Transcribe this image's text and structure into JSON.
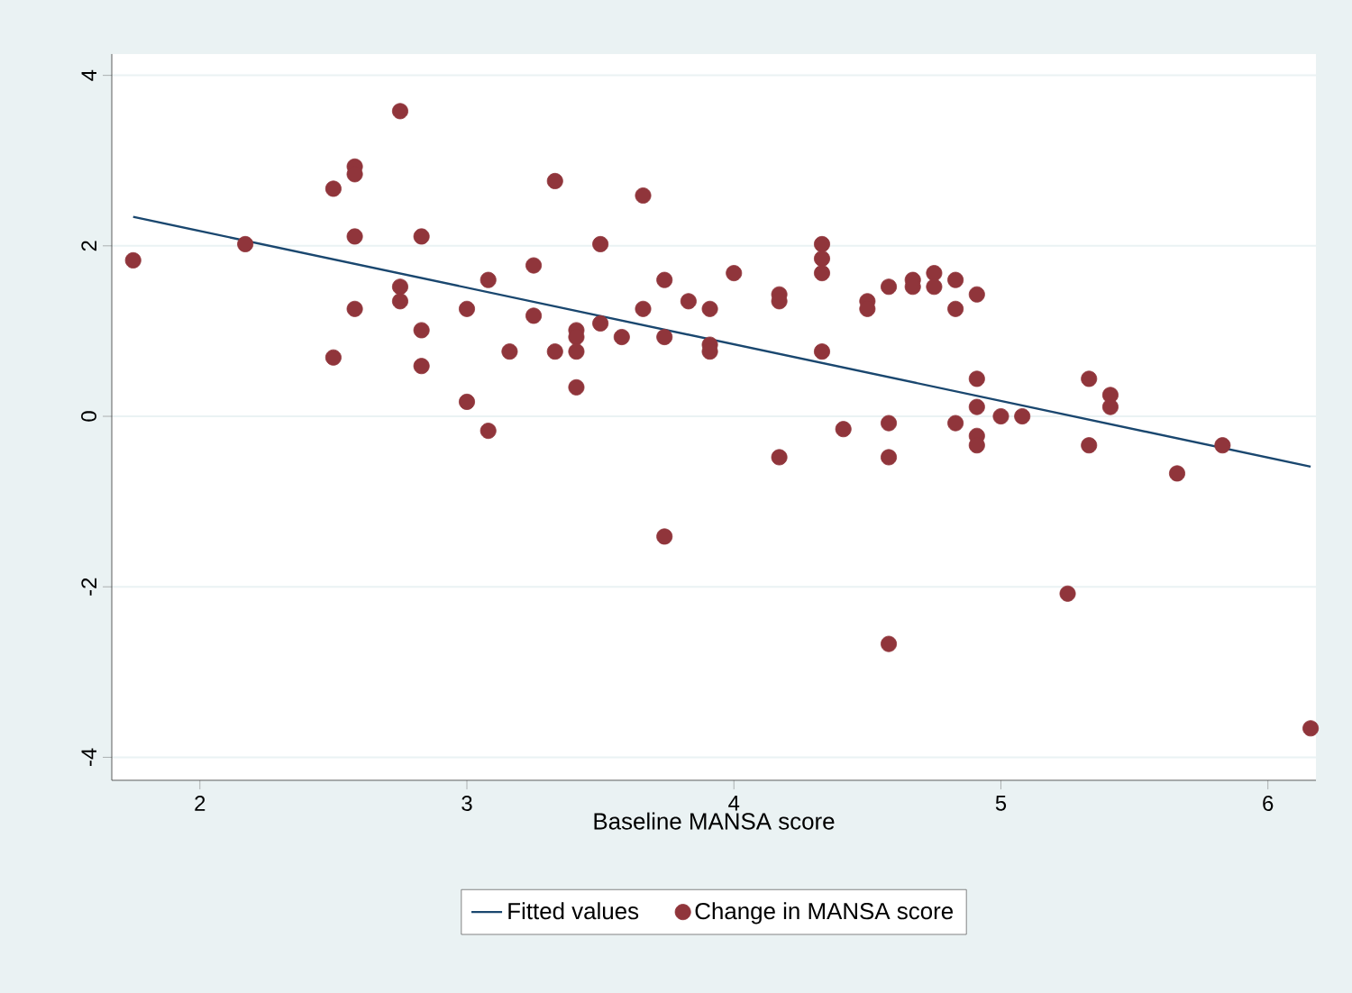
{
  "chart_data": {
    "type": "scatter",
    "xlabel": "Baseline MANSA score",
    "xlim": [
      1.67,
      6.18
    ],
    "ylim": [
      -4.27,
      4.25
    ],
    "xticks": [
      2,
      3,
      4,
      5,
      6
    ],
    "yticks": [
      -4,
      -2,
      0,
      2,
      4
    ],
    "grid": "y",
    "legend": "bottom",
    "series": [
      {
        "name": "Fitted values",
        "type": "line",
        "color": "#1a476f",
        "x": [
          1.75,
          6.16
        ],
        "values": [
          2.34,
          -0.59
        ]
      },
      {
        "name": "Change in MANSA score",
        "type": "scatter",
        "color": "#90353b",
        "x": [
          1.75,
          2.17,
          2.5,
          2.58,
          2.58,
          2.75,
          3.33,
          3.66,
          2.58,
          2.83,
          3.5,
          3.25,
          3.08,
          2.75,
          2.75,
          2.58,
          3.0,
          3.74,
          3.83,
          3.91,
          3.66,
          3.25,
          3.5,
          2.83,
          3.41,
          3.41,
          3.58,
          3.74,
          3.16,
          3.33,
          3.41,
          2.5,
          2.83,
          3.41,
          3.0,
          3.08,
          3.91,
          3.91,
          4.0,
          4.17,
          4.17,
          4.33,
          4.33,
          4.33,
          4.33,
          4.5,
          4.5,
          4.58,
          4.67,
          4.67,
          4.75,
          4.75,
          4.83,
          4.83,
          4.91,
          4.91,
          4.91,
          5.0,
          5.08,
          4.83,
          4.91,
          4.91,
          4.58,
          4.41,
          4.58,
          4.17,
          3.74,
          5.33,
          5.41,
          5.41,
          5.33,
          5.66,
          5.83,
          4.58,
          5.25,
          6.16
        ],
        "values": [
          1.83,
          2.02,
          2.67,
          2.93,
          2.84,
          3.58,
          2.76,
          2.59,
          2.11,
          2.11,
          2.02,
          1.77,
          1.6,
          1.52,
          1.35,
          1.26,
          1.26,
          1.6,
          1.35,
          1.26,
          1.26,
          1.18,
          1.09,
          1.01,
          1.01,
          0.93,
          0.93,
          0.93,
          0.76,
          0.76,
          0.76,
          0.69,
          0.59,
          0.34,
          0.17,
          -0.17,
          0.84,
          0.76,
          1.68,
          1.43,
          1.35,
          2.02,
          1.85,
          1.68,
          0.76,
          1.35,
          1.26,
          1.52,
          1.6,
          1.52,
          1.68,
          1.52,
          1.6,
          1.26,
          1.43,
          0.44,
          0.11,
          0.0,
          0.0,
          -0.08,
          -0.23,
          -0.34,
          -0.08,
          -0.15,
          -0.48,
          -0.48,
          -1.41,
          0.44,
          0.25,
          0.11,
          -0.34,
          -0.67,
          -0.34,
          -2.67,
          -2.08,
          -3.66
        ]
      }
    ]
  }
}
